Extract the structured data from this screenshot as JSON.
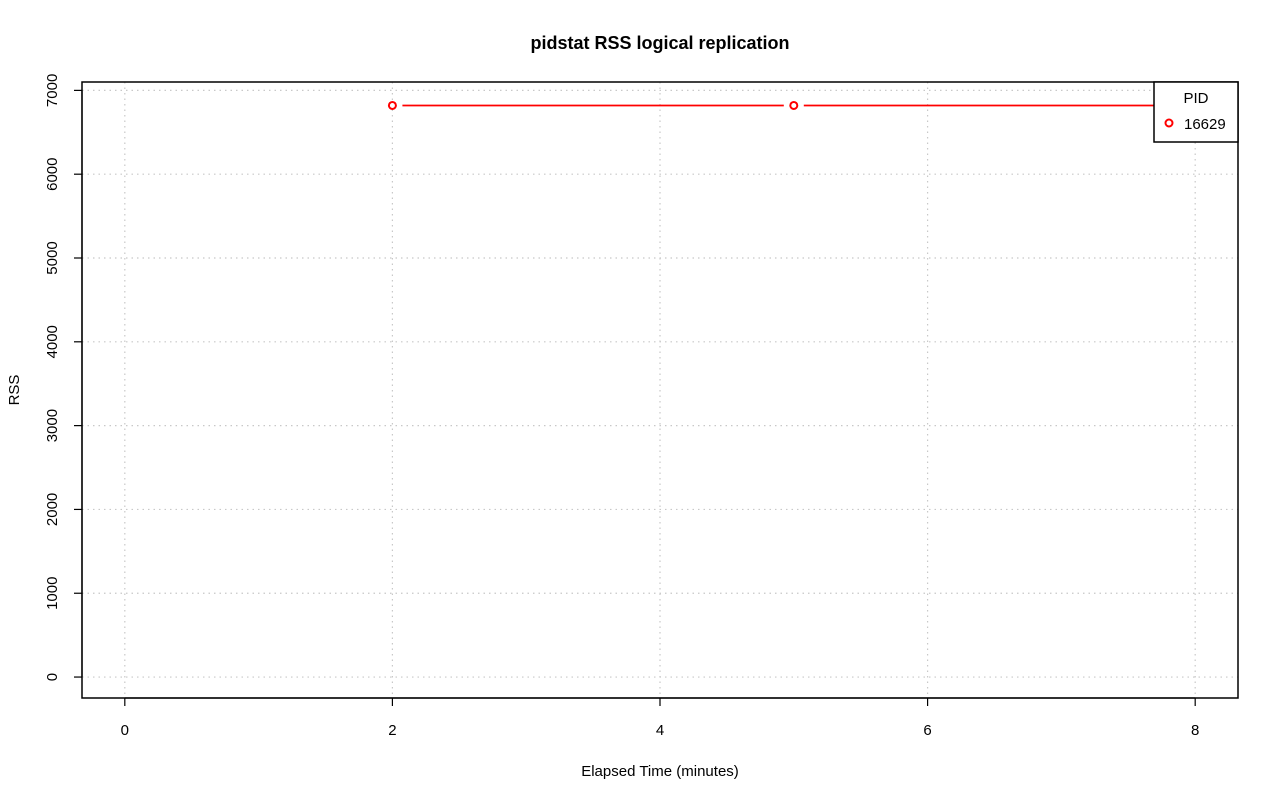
{
  "chart_data": {
    "type": "line",
    "title": "pidstat RSS logical replication",
    "xlabel": "Elapsed Time (minutes)",
    "ylabel": "RSS",
    "xlim": [
      -0.32,
      8.32
    ],
    "ylim": [
      -250,
      7100
    ],
    "x_ticks": [
      0,
      2,
      4,
      6,
      8
    ],
    "y_ticks": [
      0,
      1000,
      2000,
      3000,
      4000,
      5000,
      6000,
      7000
    ],
    "grid": true,
    "legend": {
      "title": "PID",
      "placement": "top-right",
      "entries": [
        "16629"
      ]
    },
    "series": [
      {
        "name": "16629",
        "color": "#ff0000",
        "x": [
          2,
          5,
          8
        ],
        "y": [
          6820,
          6820,
          6820
        ]
      }
    ]
  }
}
